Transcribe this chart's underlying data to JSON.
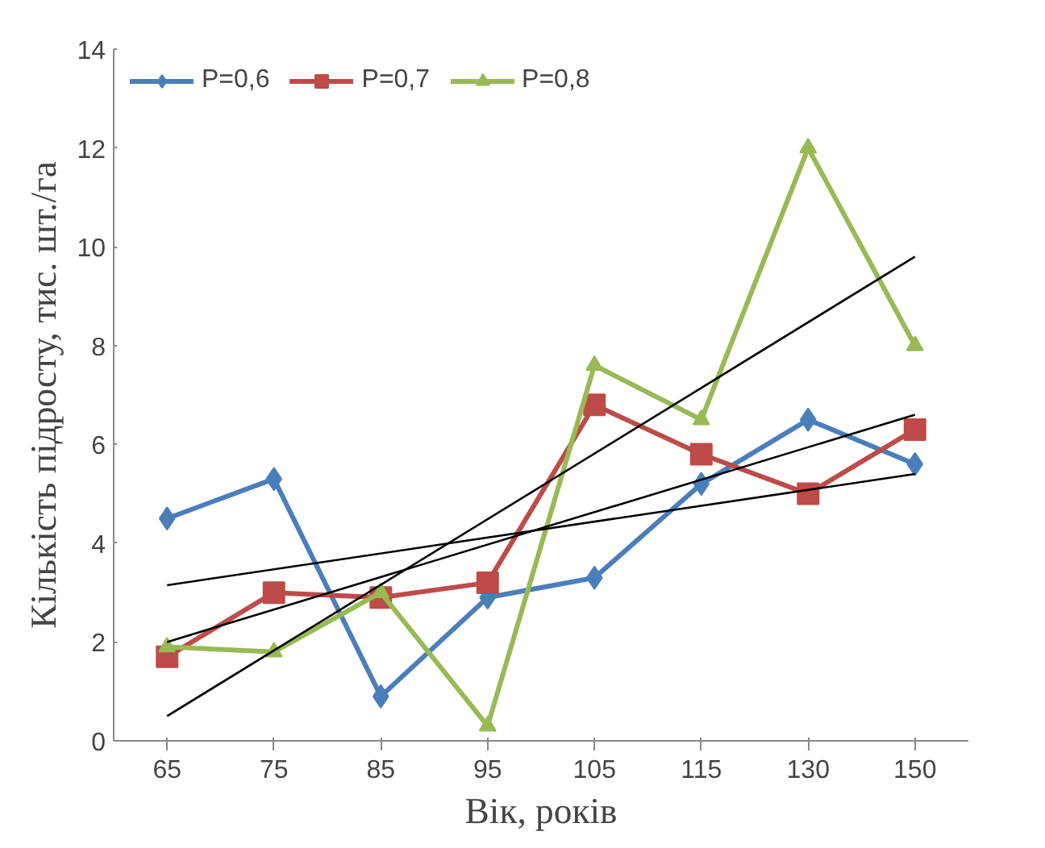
{
  "chart_data": {
    "type": "line",
    "xlabel": "Вік, років",
    "ylabel": "Кількість підросту, тис. шт./га",
    "categories": [
      "65",
      "75",
      "85",
      "95",
      "105",
      "115",
      "130",
      "150"
    ],
    "ylim": [
      0,
      14
    ],
    "yticks": [
      0,
      2,
      4,
      6,
      8,
      10,
      12,
      14
    ],
    "grid": false,
    "legend": "top left",
    "series": [
      {
        "name": "P=0,6",
        "color": "#4a7ebb",
        "marker": "diamond",
        "values": [
          4.5,
          5.3,
          0.9,
          2.9,
          3.3,
          5.2,
          6.5,
          5.6
        ]
      },
      {
        "name": "P=0,7",
        "color": "#be4b48",
        "marker": "square",
        "values": [
          1.7,
          3.0,
          2.9,
          3.2,
          6.8,
          5.8,
          5.0,
          6.3
        ]
      },
      {
        "name": "P=0,8",
        "color": "#98b954",
        "marker": "triangle",
        "values": [
          1.9,
          1.8,
          3.0,
          0.3,
          7.6,
          6.5,
          12.0,
          8.0
        ]
      },
      {
        "type": "line",
        "color": "#000000",
        "marker": "none",
        "x": [
          "65",
          "150"
        ],
        "values": [
          3.15,
          5.4
        ]
      },
      {
        "type": "line",
        "color": "#000000",
        "marker": "none",
        "x": [
          "65",
          "150"
        ],
        "values": [
          2.0,
          6.6
        ]
      },
      {
        "type": "line",
        "color": "#000000",
        "marker": "none",
        "x": [
          "65",
          "150"
        ],
        "values": [
          0.5,
          9.8
        ]
      }
    ]
  }
}
